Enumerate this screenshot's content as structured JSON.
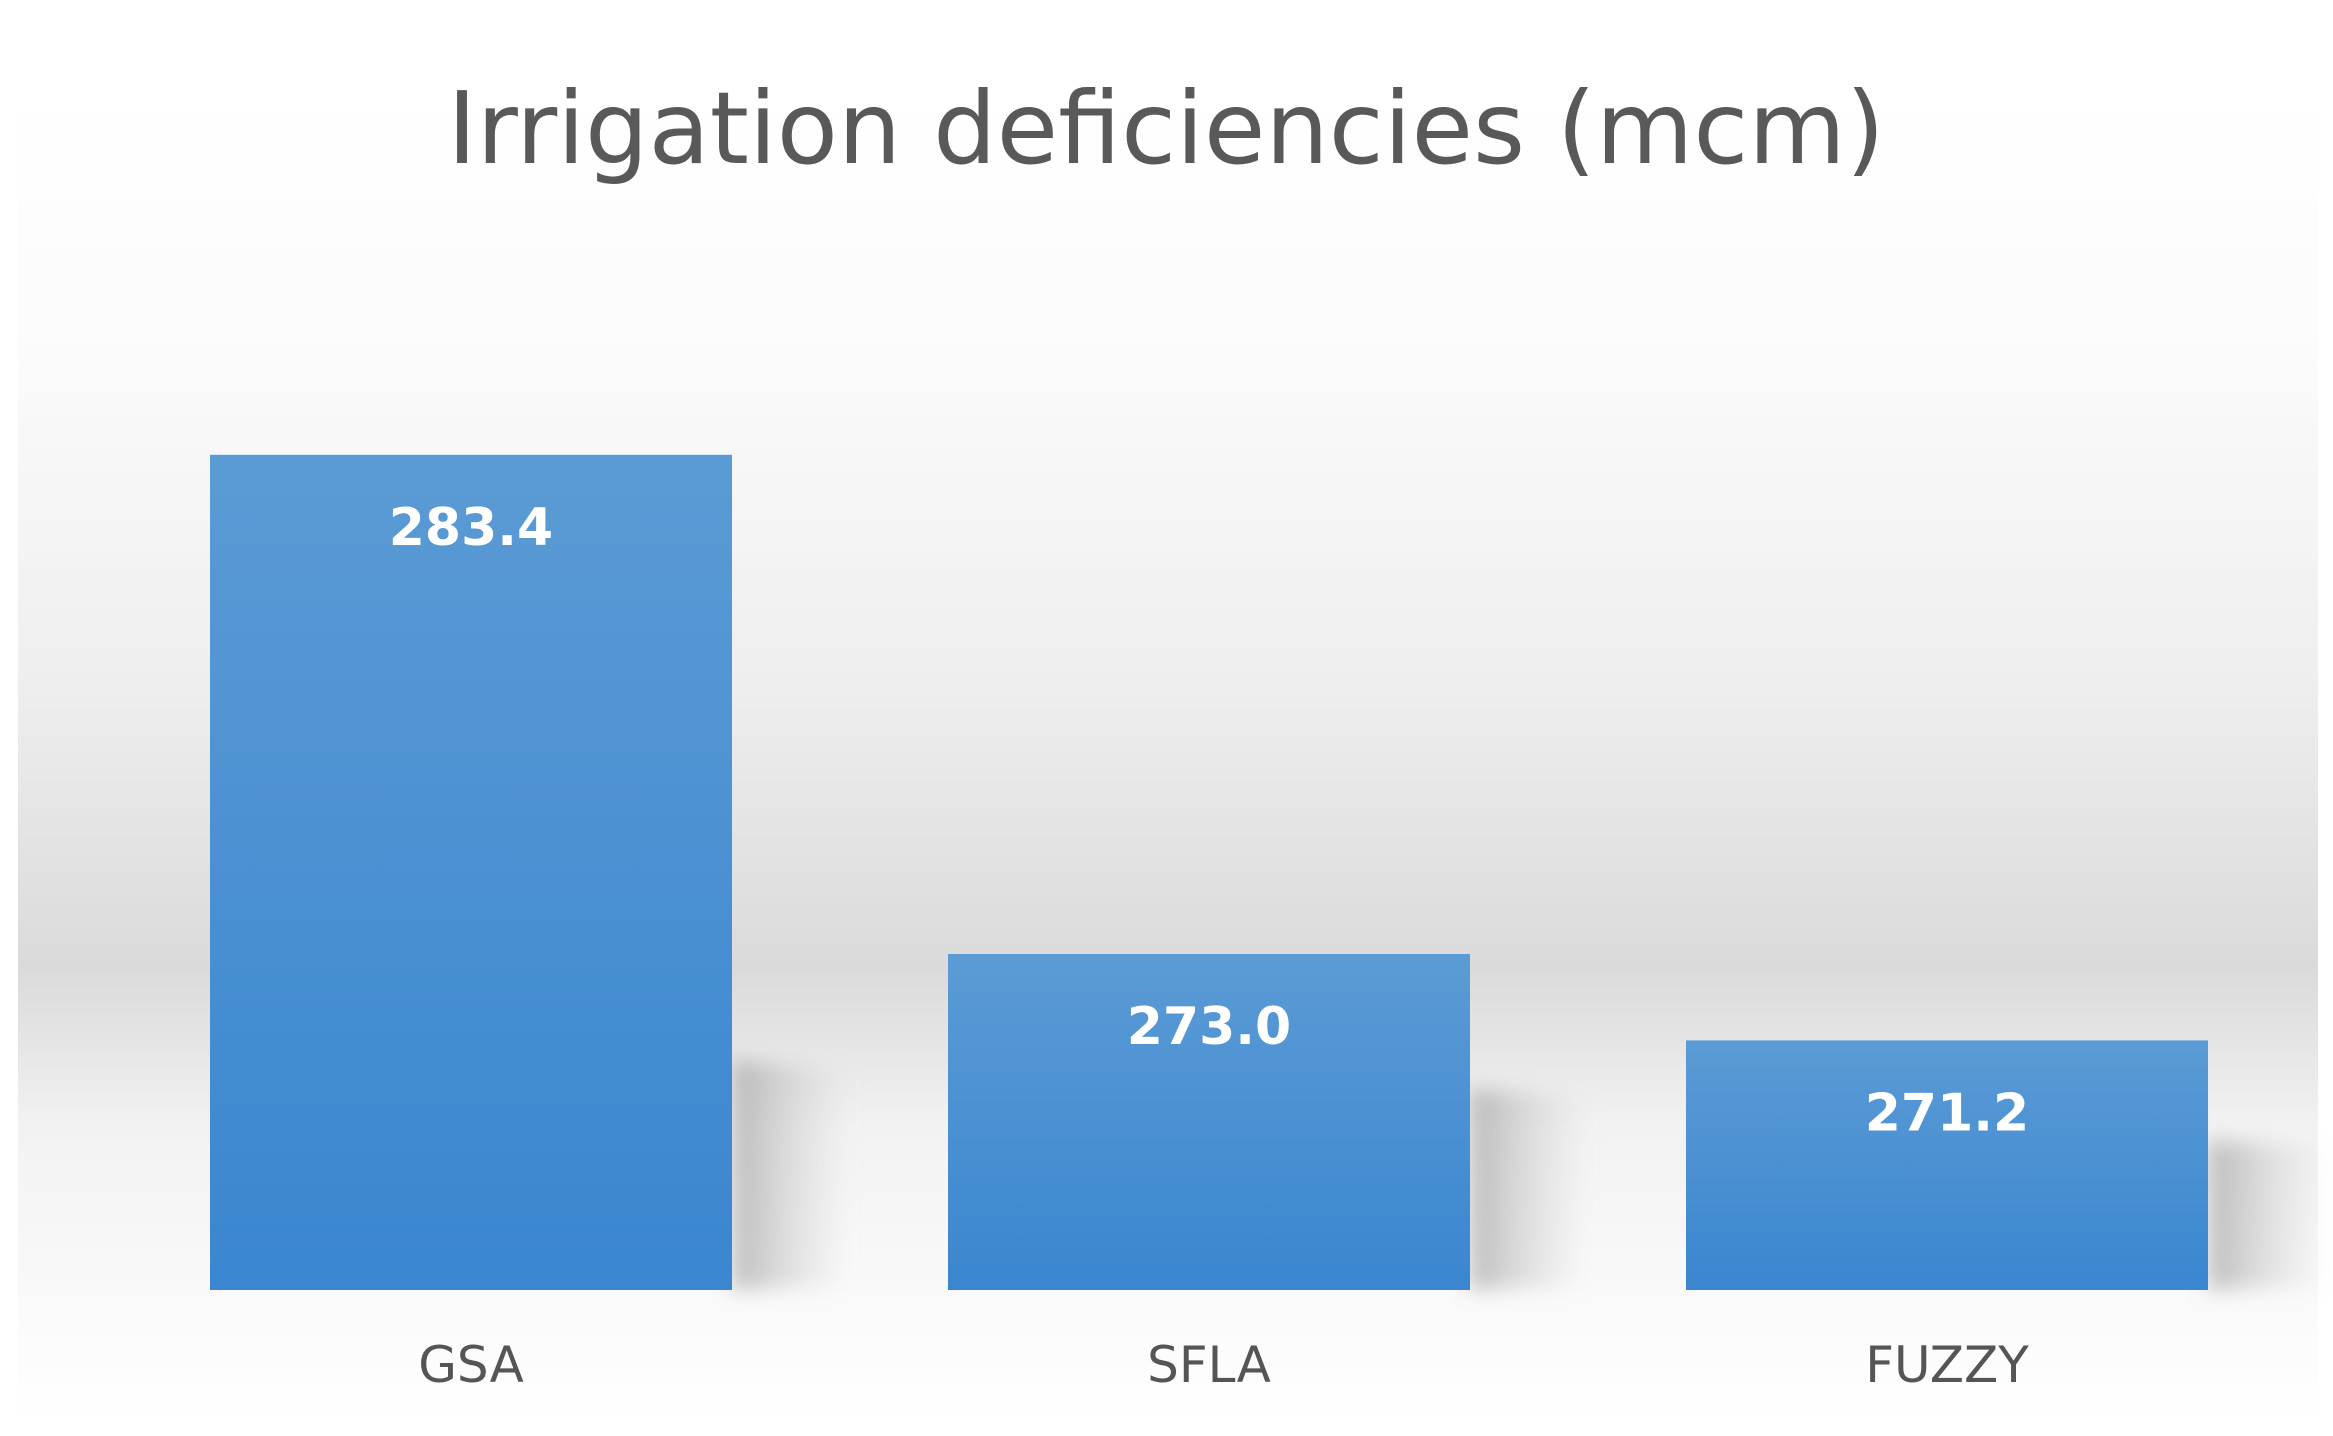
{
  "chart_data": {
    "type": "bar",
    "title": "Irrigation deficiencies (mcm)",
    "xlabel": "",
    "ylabel": "",
    "categories": [
      "GSA",
      "SFLA",
      "FUZZY"
    ],
    "values": [
      283.4,
      273.0,
      271.2
    ],
    "data_labels": [
      "283.4",
      "273.0",
      "271.2"
    ],
    "ylim": [
      266,
      291
    ],
    "grid": false,
    "legend": "none",
    "colors": {
      "bar_top": "#5b9bd5",
      "bar_bottom": "#3a86d0",
      "label_text": "#ffffff",
      "category_text": "#555555",
      "title_text": "#595959",
      "background_light": "#ffffff",
      "background_dark": "#dcdcdc"
    }
  }
}
